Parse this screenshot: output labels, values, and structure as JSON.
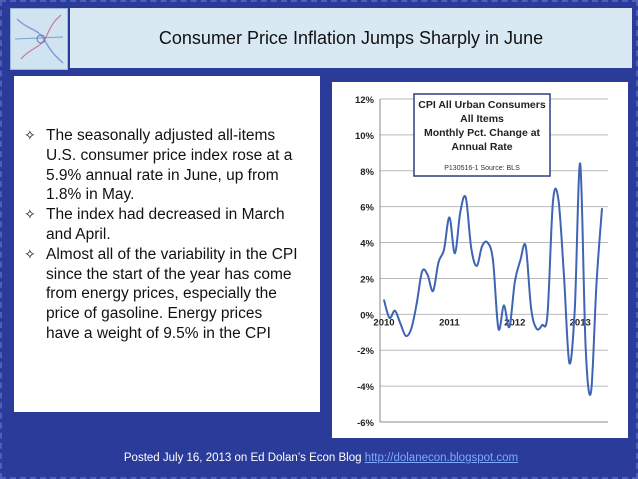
{
  "slide": {
    "title": "Consumer Price Inflation Jumps Sharply in June",
    "bullets": [
      "The seasonally adjusted all-items U.S. consumer price index rose at a 5.9% annual rate in June, up from 1.8% in May.",
      "The index had decreased in March and April.",
      "Almost all of the variability in the CPI since the start of the year has come from energy prices, especially the price of gasoline. Energy prices have a weight of 9.5% in the CPI"
    ],
    "bullet_lines": [
      [
        "The seasonally adjusted all-items",
        "U.S. consumer price index rose at a",
        "5.9% annual rate in June, up from",
        "1.8% in May."
      ],
      [
        "The index had decreased in March",
        "and April."
      ],
      [
        "Almost all of the variability in the CPI",
        "since the start of the year has come",
        "from energy prices, especially the",
        "price of gasoline. Energy prices",
        "have a weight of 9.5% in the CPI"
      ]
    ],
    "bullet_icon": "four-point-star-icon",
    "footer_text": "Posted July 16, 2013 on Ed Dolan’s Econ Blog ",
    "footer_link": "http://dolanecon.blogspot.com",
    "colors": {
      "background": "#2a3b99",
      "header_bg": "#d8e9f4",
      "line": "#3e64b3",
      "link": "#7fa8ff",
      "chart_title_box": "#2f3f80"
    }
  },
  "chart_data": {
    "type": "line",
    "title_lines": [
      "CPI All Urban Consumers",
      "All Items",
      "Monthly Pct. Change at",
      "Annual Rate"
    ],
    "source": "P130516-1 Source: BLS",
    "x_tick_labels": [
      "2010",
      "2011",
      "2012",
      "2013"
    ],
    "y_tick_labels": [
      "12%",
      "10%",
      "8%",
      "6%",
      "4%",
      "2%",
      "0%",
      "-2%",
      "-4%",
      "-6%"
    ],
    "y_ticks": [
      12,
      10,
      8,
      6,
      4,
      2,
      0,
      -2,
      -4,
      -6
    ],
    "ylim": [
      -6,
      12
    ],
    "grid": true,
    "series": [
      {
        "values": [
          0.8,
          -0.2,
          0.2,
          -0.5,
          -1.2,
          -0.8,
          0.6,
          2.4,
          2.2,
          1.3,
          2.9,
          3.6,
          5.4,
          3.4,
          5.7,
          6.5,
          3.7,
          2.7,
          3.8,
          4.0,
          3.0,
          -0.8,
          0.5,
          -0.7,
          1.8,
          3.0,
          3.8,
          0.3,
          -0.8,
          -0.6,
          0.0,
          6.3,
          6.4,
          2.3,
          -2.7,
          0.3,
          8.4,
          -1.9,
          -4.3,
          1.8,
          5.9
        ]
      }
    ],
    "x_range": [
      "2010-01",
      "2013-06"
    ]
  }
}
